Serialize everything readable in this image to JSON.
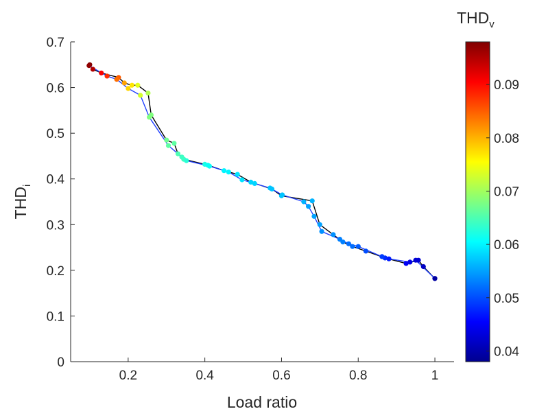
{
  "chart_data": {
    "type": "scatter",
    "xlabel": "Load ratio",
    "ylabel": {
      "main": "THD",
      "sub": "i"
    },
    "colorbar_label": {
      "main": "THD",
      "sub": "v"
    },
    "xlim": [
      0.05,
      1.05
    ],
    "ylim": [
      0,
      0.7
    ],
    "xticks": [
      "0.2",
      "0.4",
      "0.6",
      "0.8",
      "1"
    ],
    "yticks": [
      "0",
      "0.1",
      "0.2",
      "0.3",
      "0.4",
      "0.5",
      "0.6",
      "0.7"
    ],
    "colorbar_range": [
      0.038,
      0.098
    ],
    "colorbar_ticks": [
      "0.04",
      "0.05",
      "0.06",
      "0.07",
      "0.08",
      "0.09"
    ],
    "colormap": "jet",
    "grid": false,
    "series": [
      {
        "line_color": "#000000",
        "points": [
          [
            0.1,
            0.65,
            0.098
          ],
          [
            0.108,
            0.64,
            0.095
          ],
          [
            0.13,
            0.632,
            0.091
          ],
          [
            0.175,
            0.622,
            0.085
          ],
          [
            0.19,
            0.61,
            0.081
          ],
          [
            0.21,
            0.605,
            0.077
          ],
          [
            0.225,
            0.605,
            0.074
          ],
          [
            0.252,
            0.588,
            0.071
          ],
          [
            0.26,
            0.54,
            0.068
          ],
          [
            0.3,
            0.485,
            0.067
          ],
          [
            0.32,
            0.478,
            0.066
          ],
          [
            0.33,
            0.455,
            0.065
          ],
          [
            0.345,
            0.443,
            0.064
          ],
          [
            0.4,
            0.432,
            0.062
          ],
          [
            0.408,
            0.43,
            0.061
          ],
          [
            0.45,
            0.418,
            0.06
          ],
          [
            0.485,
            0.41,
            0.059
          ],
          [
            0.52,
            0.393,
            0.058
          ],
          [
            0.575,
            0.378,
            0.057
          ],
          [
            0.6,
            0.363,
            0.057
          ],
          [
            0.68,
            0.352,
            0.056
          ],
          [
            0.7,
            0.3,
            0.055
          ],
          [
            0.735,
            0.278,
            0.054
          ],
          [
            0.76,
            0.262,
            0.053
          ],
          [
            0.785,
            0.252,
            0.052
          ],
          [
            0.82,
            0.242,
            0.05
          ],
          [
            0.87,
            0.227,
            0.048
          ],
          [
            0.925,
            0.215,
            0.045
          ],
          [
            0.957,
            0.222,
            0.043
          ],
          [
            0.97,
            0.208,
            0.042
          ],
          [
            1.0,
            0.182,
            0.04
          ]
        ]
      },
      {
        "line_color": "#1f3fff",
        "points": [
          [
            0.098,
            0.648,
            0.097
          ],
          [
            0.145,
            0.625,
            0.088
          ],
          [
            0.17,
            0.618,
            0.084
          ],
          [
            0.2,
            0.598,
            0.078
          ],
          [
            0.232,
            0.583,
            0.073
          ],
          [
            0.255,
            0.535,
            0.068
          ],
          [
            0.305,
            0.473,
            0.066
          ],
          [
            0.34,
            0.448,
            0.064
          ],
          [
            0.352,
            0.44,
            0.063
          ],
          [
            0.412,
            0.428,
            0.061
          ],
          [
            0.462,
            0.415,
            0.06
          ],
          [
            0.497,
            0.398,
            0.059
          ],
          [
            0.53,
            0.39,
            0.058
          ],
          [
            0.57,
            0.38,
            0.057
          ],
          [
            0.602,
            0.365,
            0.057
          ],
          [
            0.658,
            0.35,
            0.056
          ],
          [
            0.67,
            0.34,
            0.055
          ],
          [
            0.685,
            0.318,
            0.055
          ],
          [
            0.705,
            0.285,
            0.054
          ],
          [
            0.752,
            0.268,
            0.053
          ],
          [
            0.775,
            0.258,
            0.052
          ],
          [
            0.8,
            0.252,
            0.051
          ],
          [
            0.862,
            0.23,
            0.049
          ],
          [
            0.88,
            0.225,
            0.047
          ],
          [
            0.935,
            0.218,
            0.044
          ],
          [
            0.95,
            0.222,
            0.043
          ],
          [
            1.0,
            0.182,
            0.04
          ]
        ]
      }
    ]
  }
}
